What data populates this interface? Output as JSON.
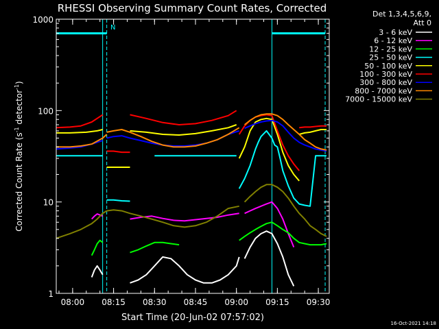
{
  "chart_data": {
    "type": "line",
    "title": "RHESSI Observing Summary Count Rates, Corrected",
    "xlabel": "Start Time (20-Jun-02 07:57:02)",
    "ylabel_main": "Corrected Count Rate (s",
    "ylabel_sup1": "-1",
    "ylabel_mid": " detector",
    "ylabel_sup2": "-1",
    "ylabel_end": ")",
    "yscale": "log",
    "ylim": [
      1,
      1000
    ],
    "xlim_min": [
      -3,
      97
    ],
    "x_ticks": [
      {
        "v": 3,
        "label": "08:00"
      },
      {
        "v": 18,
        "label": "08:15"
      },
      {
        "v": 33,
        "label": "08:30"
      },
      {
        "v": 48,
        "label": "08:45"
      },
      {
        "v": 63,
        "label": "09:00"
      },
      {
        "v": 78,
        "label": "09:15"
      },
      {
        "v": 93,
        "label": "09:30"
      }
    ],
    "y_ticks": [
      {
        "v": 1,
        "label": "1"
      },
      {
        "v": 10,
        "label": "10"
      },
      {
        "v": 100,
        "label": "100"
      },
      {
        "v": 1000,
        "label": "1000"
      }
    ],
    "legend_header": [
      "Det 1,3,4,5,6,9,",
      "Att 0"
    ],
    "legend_position": "top-right",
    "footer_date": "16-Oct-2021 14:18",
    "flag_label": "N",
    "marks": {
      "solid_lines": [
        14,
        76
      ],
      "dashed_lines": [
        15.5,
        95.5
      ],
      "bars": [
        [
          -3,
          15.5,
          700
        ],
        [
          76,
          95.5,
          700
        ]
      ]
    },
    "series": [
      {
        "name": "3 - 6 keV",
        "color": "#ffffff",
        "segments": [
          {
            "x": [
              10,
              11,
              12,
              13,
              14
            ],
            "y": [
              1.5,
              1.8,
              2.0,
              1.8,
              1.6
            ]
          },
          {
            "x": [
              24,
              27,
              30,
              33,
              36,
              39,
              42,
              45,
              48,
              51,
              54,
              57,
              60,
              63,
              64
            ],
            "y": [
              1.3,
              1.4,
              1.6,
              2.0,
              2.5,
              2.4,
              2.0,
              1.6,
              1.4,
              1.3,
              1.3,
              1.4,
              1.6,
              2.0,
              2.5
            ]
          },
          {
            "x": [
              66,
              68,
              70,
              72,
              74,
              76,
              78,
              80,
              82,
              84
            ],
            "y": [
              2.4,
              3.2,
              4.0,
              4.5,
              4.8,
              4.5,
              3.5,
              2.5,
              1.6,
              1.2
            ]
          }
        ]
      },
      {
        "name": "6 - 12 keV",
        "color": "#ff00ff",
        "segments": [
          {
            "x": [
              10,
              11,
              12,
              13,
              14
            ],
            "y": [
              6.5,
              7.0,
              7.4,
              7.2,
              7.0
            ]
          },
          {
            "x": [
              24,
              28,
              32,
              36,
              40,
              44,
              48,
              52,
              56,
              60,
              64
            ],
            "y": [
              6.5,
              6.8,
              7.0,
              6.6,
              6.3,
              6.2,
              6.4,
              6.6,
              6.8,
              7.2,
              7.5
            ]
          },
          {
            "x": [
              66,
              68,
              70,
              72,
              74,
              76,
              78,
              80,
              82,
              84
            ],
            "y": [
              7.5,
              8.0,
              8.5,
              9.0,
              9.5,
              10.0,
              8.5,
              6.5,
              4.5,
              3.2
            ]
          }
        ]
      },
      {
        "name": "12 - 25 keV",
        "color": "#00ff00",
        "segments": [
          {
            "x": [
              10,
              11,
              12,
              13,
              14
            ],
            "y": [
              2.6,
              3.0,
              3.5,
              3.8,
              3.6
            ]
          },
          {
            "x": [
              24,
              27,
              30,
              33,
              36,
              39,
              42
            ],
            "y": [
              2.8,
              3.0,
              3.3,
              3.6,
              3.6,
              3.5,
              3.4
            ]
          },
          {
            "x": [
              64,
              66,
              68,
              70,
              72,
              74,
              76,
              78,
              80,
              82,
              84,
              86,
              88,
              90,
              92,
              94,
              96
            ],
            "y": [
              3.8,
              4.2,
              4.6,
              5.0,
              5.4,
              5.8,
              6.0,
              5.5,
              5.0,
              4.6,
              4.0,
              3.6,
              3.5,
              3.4,
              3.4,
              3.4,
              3.5
            ]
          }
        ]
      },
      {
        "name": "25 - 50 keV",
        "color": "#00ffff",
        "segments": [
          {
            "x": [
              -3,
              3,
              8,
              14
            ],
            "y": [
              32,
              32,
              32,
              32
            ]
          },
          {
            "x": [
              15.5,
              18,
              21,
              24
            ],
            "y": [
              10.5,
              10.5,
              10.3,
              10.2
            ]
          },
          {
            "x": [
              33,
              45,
              55,
              63
            ],
            "y": [
              32,
              32,
              32,
              32
            ]
          },
          {
            "x": [
              64,
              66,
              68,
              70,
              71,
              72,
              74,
              76,
              77,
              78,
              79,
              80,
              82,
              84,
              86,
              88,
              90,
              92,
              94,
              96
            ],
            "y": [
              14,
              18,
              25,
              38,
              45,
              52,
              60,
              50,
              42,
              40,
              30,
              22,
              15,
              11,
              9.5,
              9.2,
              9.0,
              32,
              32,
              32
            ]
          }
        ]
      },
      {
        "name": "50 - 100 keV",
        "color": "#ffff00",
        "segments": [
          {
            "x": [
              -3,
              2,
              8,
              12,
              14
            ],
            "y": [
              57,
              57,
              58,
              60,
              62
            ]
          },
          {
            "x": [
              15.5,
              18,
              21,
              24
            ],
            "y": [
              24,
              24,
              24,
              24
            ]
          },
          {
            "x": [
              24,
              30,
              36,
              42,
              48,
              54,
              60,
              63
            ],
            "y": [
              60,
              58,
              55,
              54,
              56,
              60,
              65,
              70
            ]
          },
          {
            "x": [
              64,
              66,
              68,
              70,
              72,
              74,
              76,
              78,
              80,
              82,
              84,
              86
            ],
            "y": [
              30,
              40,
              60,
              75,
              80,
              82,
              80,
              55,
              35,
              25,
              20,
              17
            ]
          },
          {
            "x": [
              86,
              88,
              90,
              92,
              94,
              96
            ],
            "y": [
              55,
              57,
              58,
              60,
              62,
              62
            ]
          }
        ]
      },
      {
        "name": "100 - 300 keV",
        "color": "#ff0000",
        "segments": [
          {
            "x": [
              -3,
              2,
              6,
              10,
              14
            ],
            "y": [
              65,
              66,
              68,
              75,
              90
            ]
          },
          {
            "x": [
              15.5,
              18,
              21,
              24
            ],
            "y": [
              36,
              36,
              35,
              35
            ]
          },
          {
            "x": [
              24,
              30,
              36,
              42,
              48,
              54,
              60,
              63
            ],
            "y": [
              90,
              82,
              74,
              70,
              72,
              78,
              88,
              100
            ]
          },
          {
            "x": [
              64,
              66,
              68,
              70,
              72,
              74,
              76,
              78,
              80,
              82,
              84,
              86
            ],
            "y": [
              55,
              68,
              78,
              85,
              88,
              90,
              88,
              60,
              42,
              32,
              26,
              22
            ]
          },
          {
            "x": [
              86,
              88,
              90,
              92,
              94,
              96
            ],
            "y": [
              65,
              66,
              66,
              67,
              68,
              68
            ]
          }
        ]
      },
      {
        "name": "300 - 800 keV",
        "color": "#0000ff",
        "segments": [
          {
            "x": [
              -3,
              2,
              6,
              10,
              14
            ],
            "y": [
              38,
              39,
              40,
              43,
              47
            ]
          },
          {
            "x": [
              15.5,
              18,
              21,
              24,
              28,
              32,
              36,
              40,
              44,
              48,
              52,
              56,
              60,
              64
            ],
            "y": [
              50,
              52,
              53,
              50,
              47,
              44,
              42,
              41,
              41,
              42,
              44,
              48,
              55,
              60
            ]
          },
          {
            "x": [
              66,
              68,
              70,
              72,
              74,
              76,
              78,
              80,
              82,
              84,
              86,
              88,
              90,
              92,
              94,
              96
            ],
            "y": [
              64,
              68,
              72,
              75,
              77,
              78,
              75,
              68,
              58,
              50,
              45,
              42,
              40,
              38,
              37,
              36
            ]
          }
        ]
      },
      {
        "name": "800 - 7000 keV",
        "color": "#ff8800",
        "segments": [
          {
            "x": [
              -3,
              2,
              6,
              10,
              14,
              15.5
            ],
            "y": [
              40,
              40,
              41,
              43,
              50,
              55
            ]
          },
          {
            "x": [
              15.5,
              18,
              21,
              24,
              28,
              32,
              36,
              40,
              44,
              48,
              52,
              56,
              60,
              64
            ],
            "y": [
              58,
              60,
              62,
              58,
              52,
              46,
              42,
              40,
              40,
              41,
              44,
              48,
              55,
              65
            ]
          },
          {
            "x": [
              66,
              68,
              70,
              72,
              74,
              76,
              78,
              80,
              82,
              84,
              86,
              88,
              90,
              92,
              94,
              96
            ],
            "y": [
              70,
              78,
              85,
              90,
              92,
              92,
              88,
              80,
              70,
              62,
              55,
              48,
              44,
              40,
              38,
              37
            ]
          }
        ]
      },
      {
        "name": "7000 - 15000 keV",
        "color": "#808000",
        "segments": [
          {
            "x": [
              -3,
              2,
              6,
              10,
              12,
              14,
              15.5
            ],
            "y": [
              4.0,
              4.5,
              5.0,
              5.8,
              6.5,
              7.5,
              8.0
            ]
          },
          {
            "x": [
              15.5,
              18,
              21,
              24,
              28,
              32,
              36,
              40,
              44,
              48,
              52,
              56,
              60,
              64
            ],
            "y": [
              8.0,
              8.2,
              8.0,
              7.5,
              7.0,
              6.5,
              6.0,
              5.5,
              5.3,
              5.5,
              6.0,
              7.0,
              8.5,
              9.0
            ]
          },
          {
            "x": [
              66,
              68,
              70,
              72,
              74,
              76,
              78,
              80,
              82,
              84,
              86,
              88,
              90,
              92,
              94,
              96
            ],
            "y": [
              10.0,
              11.5,
              13.0,
              14.5,
              15.5,
              15.5,
              14.5,
              13.0,
              11.0,
              9.0,
              7.5,
              6.5,
              5.5,
              5.0,
              4.5,
              4.2
            ]
          }
        ]
      }
    ]
  }
}
